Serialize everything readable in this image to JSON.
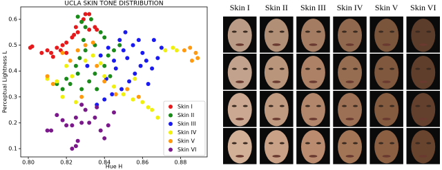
{
  "chart_data": {
    "type": "scatter",
    "title": "UCLA SKIN TONE DISTRIBUTION",
    "x_label": "Hue H",
    "y_label": "Perceptual Lightness L",
    "xlim": [
      0.796,
      0.894
    ],
    "ylim": [
      0.068,
      0.648
    ],
    "xticks": [
      {
        "value": 0.8,
        "label": "0.80"
      },
      {
        "value": 0.82,
        "label": "0.82"
      },
      {
        "value": 0.84,
        "label": "0.84"
      },
      {
        "value": 0.86,
        "label": "0.86"
      },
      {
        "value": 0.88,
        "label": "0.88"
      }
    ],
    "yticks": [
      0.1,
      0.2,
      0.3,
      0.4,
      0.5,
      0.6
    ],
    "legend": "lower right",
    "series": [
      {
        "name": "Skin I",
        "color": "#e41a1c",
        "x": [
          0.801,
          0.802,
          0.807,
          0.81,
          0.812,
          0.815,
          0.817,
          0.818,
          0.82,
          0.823,
          0.824,
          0.826,
          0.825,
          0.829,
          0.83,
          0.828,
          0.832,
          0.835,
          0.82,
          0.813,
          0.832,
          0.836
        ],
        "values": [
          0.49,
          0.495,
          0.47,
          0.48,
          0.47,
          0.49,
          0.48,
          0.5,
          0.51,
          0.53,
          0.54,
          0.55,
          0.57,
          0.6,
          0.62,
          0.59,
          0.56,
          0.57,
          0.47,
          0.455,
          0.62,
          0.56
        ]
      },
      {
        "name": "Skin II",
        "color": "#1a8a1a",
        "x": [
          0.826,
          0.828,
          0.83,
          0.833,
          0.838,
          0.84,
          0.835,
          0.83,
          0.827,
          0.825,
          0.82,
          0.822,
          0.828,
          0.832,
          0.835,
          0.84,
          0.842,
          0.845,
          0.848,
          0.818,
          0.815,
          0.826,
          0.836,
          0.843,
          0.829
        ],
        "values": [
          0.61,
          0.59,
          0.57,
          0.6,
          0.55,
          0.53,
          0.5,
          0.48,
          0.45,
          0.42,
          0.37,
          0.35,
          0.33,
          0.36,
          0.39,
          0.42,
          0.46,
          0.48,
          0.5,
          0.33,
          0.35,
          0.39,
          0.33,
          0.38,
          0.52
        ]
      },
      {
        "name": "Skin III",
        "color": "#1a1aee",
        "x": [
          0.838,
          0.842,
          0.845,
          0.848,
          0.85,
          0.852,
          0.855,
          0.858,
          0.86,
          0.862,
          0.865,
          0.868,
          0.87,
          0.866,
          0.856,
          0.853,
          0.849,
          0.844,
          0.84,
          0.836,
          0.846,
          0.841,
          0.859,
          0.863,
          0.831,
          0.851
        ],
        "values": [
          0.46,
          0.49,
          0.44,
          0.52,
          0.48,
          0.45,
          0.5,
          0.52,
          0.47,
          0.44,
          0.41,
          0.45,
          0.49,
          0.52,
          0.39,
          0.36,
          0.33,
          0.31,
          0.29,
          0.27,
          0.41,
          0.37,
          0.42,
          0.35,
          0.42,
          0.55
        ]
      },
      {
        "name": "Skin IV",
        "color": "#f0f010",
        "x": [
          0.81,
          0.815,
          0.82,
          0.823,
          0.83,
          0.834,
          0.838,
          0.84,
          0.845,
          0.85,
          0.855,
          0.86,
          0.865,
          0.868,
          0.863,
          0.872,
          0.876,
          0.878,
          0.825,
          0.818,
          0.856
        ],
        "values": [
          0.37,
          0.36,
          0.42,
          0.38,
          0.44,
          0.46,
          0.43,
          0.38,
          0.34,
          0.31,
          0.29,
          0.28,
          0.25,
          0.22,
          0.26,
          0.48,
          0.49,
          0.48,
          0.28,
          0.3,
          0.37
        ]
      },
      {
        "name": "Skin V",
        "color": "#ff9a10",
        "x": [
          0.81,
          0.813,
          0.822,
          0.826,
          0.83,
          0.834,
          0.836,
          0.84,
          0.846,
          0.852,
          0.858,
          0.882,
          0.885,
          0.888,
          0.886,
          0.889,
          0.828,
          0.818
        ],
        "values": [
          0.38,
          0.35,
          0.44,
          0.48,
          0.5,
          0.51,
          0.42,
          0.36,
          0.31,
          0.33,
          0.3,
          0.48,
          0.49,
          0.47,
          0.44,
          0.45,
          0.3,
          0.47
        ]
      },
      {
        "name": "Skin VI",
        "color": "#7a1a8a",
        "x": [
          0.81,
          0.812,
          0.815,
          0.818,
          0.82,
          0.823,
          0.825,
          0.826,
          0.825,
          0.823,
          0.828,
          0.83,
          0.832,
          0.835,
          0.838,
          0.842,
          0.845,
          0.84,
          0.828,
          0.836
        ],
        "values": [
          0.17,
          0.17,
          0.23,
          0.21,
          0.19,
          0.19,
          0.22,
          0.13,
          0.11,
          0.1,
          0.2,
          0.25,
          0.2,
          0.22,
          0.17,
          0.19,
          0.24,
          0.14,
          0.27,
          0.26
        ]
      }
    ]
  },
  "face_grid": {
    "columns": [
      "Skin I",
      "Skin II",
      "Skin III",
      "Skin IV",
      "Skin V",
      "Skin VI"
    ]
  }
}
